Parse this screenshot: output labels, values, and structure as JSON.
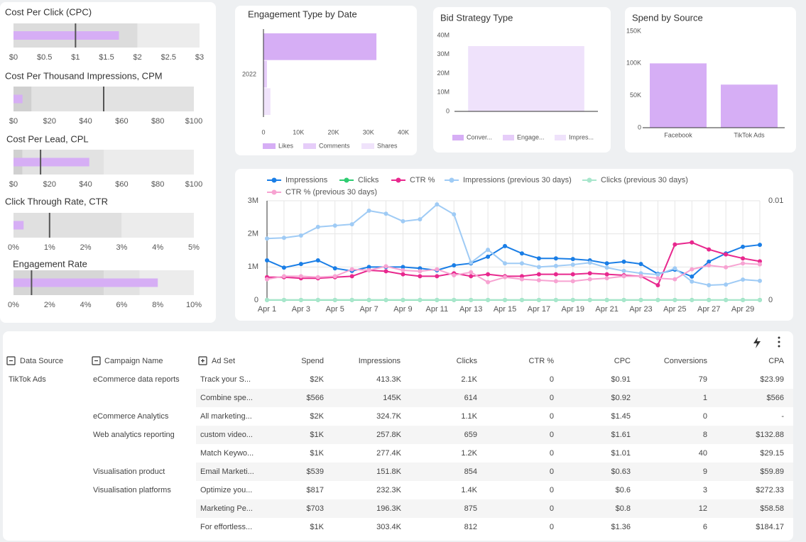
{
  "chart_data": [
    {
      "type": "bullet",
      "title": "Cost Per Click (CPC)",
      "value": 1.7,
      "target": 1,
      "ranges": [
        2,
        3
      ],
      "range_colors": [
        "#dcdcdc",
        "#ececec"
      ],
      "color": "#d6aef5",
      "target_color": "#555555",
      "xlim": [
        0,
        3
      ],
      "xticks": [
        {
          "value": 0,
          "label": "$0"
        },
        {
          "value": 0.5,
          "label": "$0.5"
        },
        {
          "value": 1,
          "label": "$1"
        },
        {
          "value": 1.5,
          "label": "$1.5"
        },
        {
          "value": 2,
          "label": "$2"
        },
        {
          "value": 2.5,
          "label": "$2.5"
        },
        {
          "value": 3,
          "label": "$3"
        }
      ]
    },
    {
      "type": "bullet",
      "title": "Cost Per Thousand Impressions, CPM",
      "value": 5,
      "target": 50,
      "ranges": [
        10,
        100
      ],
      "range_colors": [
        "#d0d0d0",
        "#e2e2e2"
      ],
      "color": "#d6aef5",
      "target_color": "#555555",
      "xlim": [
        0,
        100
      ],
      "xticks": [
        {
          "value": 0,
          "label": "$0"
        },
        {
          "value": 20,
          "label": "$20"
        },
        {
          "value": 40,
          "label": "$40"
        },
        {
          "value": 60,
          "label": "$60"
        },
        {
          "value": 80,
          "label": "$80"
        },
        {
          "value": 100,
          "label": "$100"
        }
      ]
    },
    {
      "type": "bullet",
      "title": "Cost Per Lead, CPL",
      "value": 42,
      "target": 15,
      "ranges": [
        5,
        50,
        100
      ],
      "range_colors": [
        "#d0d0d0",
        "#e2e2e2",
        "#ececec"
      ],
      "color": "#d6aef5",
      "target_color": "#555555",
      "xlim": [
        0,
        100
      ],
      "xticks": [
        {
          "value": 0,
          "label": "$0"
        },
        {
          "value": 20,
          "label": "$20"
        },
        {
          "value": 40,
          "label": "$40"
        },
        {
          "value": 60,
          "label": "$60"
        },
        {
          "value": 80,
          "label": "$80"
        },
        {
          "value": 100,
          "label": "$100"
        }
      ]
    },
    {
      "type": "bullet",
      "title": "Click Through Rate, CTR",
      "value": 0.28,
      "target": 1,
      "ranges": [
        3,
        5
      ],
      "range_colors": [
        "#e0e0e0",
        "#ececec"
      ],
      "color": "#d6aef5",
      "target_color": "#555555",
      "xlim": [
        0,
        5
      ],
      "xticks": [
        {
          "value": 0,
          "label": "0%"
        },
        {
          "value": 1,
          "label": "1%"
        },
        {
          "value": 2,
          "label": "2%"
        },
        {
          "value": 3,
          "label": "3%"
        },
        {
          "value": 4,
          "label": "4%"
        },
        {
          "value": 5,
          "label": "5%"
        }
      ]
    },
    {
      "type": "bullet",
      "title": "Engagement Rate",
      "value": 8,
      "target": 1,
      "ranges": [
        5,
        7,
        10
      ],
      "range_colors": [
        "#d6d6d6",
        "#e2e2e2",
        "#ececec"
      ],
      "color": "#d6aef5",
      "target_color": "#555555",
      "xlim": [
        0,
        10
      ],
      "xticks": [
        {
          "value": 0,
          "label": "0%"
        },
        {
          "value": 2,
          "label": "2%"
        },
        {
          "value": 4,
          "label": "4%"
        },
        {
          "value": 6,
          "label": "6%"
        },
        {
          "value": 8,
          "label": "8%"
        },
        {
          "value": 10,
          "label": "10%"
        }
      ]
    },
    {
      "type": "hbar",
      "title": "Engagement Type by Date",
      "categories": [
        "2022"
      ],
      "series": [
        {
          "name": "Likes",
          "color": "#d6aef5",
          "values": [
            32300
          ]
        },
        {
          "name": "Comments",
          "color": "#e6cdf9",
          "values": [
            1000
          ]
        },
        {
          "name": "Shares",
          "color": "#f0e3fb",
          "values": [
            2000
          ]
        }
      ],
      "xlim": [
        0,
        40000
      ],
      "xticks": [
        0,
        {
          "value": 10000,
          "label": "10K"
        },
        {
          "value": 20000,
          "label": "20K"
        },
        {
          "value": 30000,
          "label": "30K"
        },
        {
          "value": 40000,
          "label": "40K"
        }
      ],
      "legend": "bottom"
    },
    {
      "type": "bar",
      "title": "Bid Strategy Type",
      "categories": [
        null
      ],
      "stacked": true,
      "series": [
        {
          "name": "Conver...",
          "color": "#d6aef5",
          "values": [
            0
          ]
        },
        {
          "name": "Engage...",
          "color": "#e6cdf9",
          "values": [
            0
          ]
        },
        {
          "name": "Impres...",
          "color": "#efe2fb",
          "values": [
            34400000
          ]
        }
      ],
      "ylim": [
        0,
        40000000
      ],
      "yticks": [
        0,
        {
          "value": 10000000,
          "label": "10M"
        },
        {
          "value": 20000000,
          "label": "20M"
        },
        {
          "value": 30000000,
          "label": "30M"
        },
        {
          "value": 40000000,
          "label": "40M"
        }
      ],
      "legend": "bottom"
    },
    {
      "type": "bar",
      "title": "Spend by Source",
      "categories": [
        "Facebook",
        "TikTok Ads"
      ],
      "values": [
        100000,
        67000
      ],
      "color": "#d6aef5",
      "ylim": [
        0,
        150000
      ],
      "yticks": [
        0,
        {
          "value": 50000,
          "label": "50K"
        },
        {
          "value": 100000,
          "label": "100K"
        },
        {
          "value": 150000,
          "label": "150K"
        }
      ]
    },
    {
      "type": "line",
      "grid": true,
      "legend": "top",
      "categories": [
        "Apr 1",
        null,
        "Apr 3",
        null,
        "Apr 5",
        null,
        "Apr 7",
        null,
        "Apr 9",
        null,
        "Apr 11",
        null,
        "Apr 13",
        null,
        "Apr 15",
        null,
        "Apr 17",
        null,
        "Apr 19",
        null,
        "Apr 21",
        null,
        "Apr 23",
        null,
        "Apr 25",
        null,
        "Apr 27",
        null,
        "Apr 29",
        null
      ],
      "series": [
        {
          "name": "Impressions",
          "color": "#1a7ee6",
          "values": [
            1200000,
            980000,
            1090000,
            1200000,
            960000,
            880000,
            1000000,
            1000000,
            1000000,
            960000,
            900000,
            1050000,
            1110000,
            1310000,
            1630000,
            1410000,
            1260000,
            1260000,
            1240000,
            1200000,
            1110000,
            1160000,
            1090000,
            790000,
            920000,
            710000,
            1160000,
            1410000,
            1610000,
            1670000
          ]
        },
        {
          "name": "Clicks",
          "color": "#2ecc71",
          "values": [
            2100,
            1900,
            2000,
            2100,
            1800,
            1700,
            1900,
            1900,
            1900,
            1800,
            1700,
            2000,
            2100,
            2400,
            2900,
            2600,
            2300,
            2300,
            2300,
            2200,
            2100,
            2100,
            2000,
            1500,
            1700,
            1400,
            2100,
            2600,
            2900,
            3000
          ]
        },
        {
          "name": "CTR %",
          "color": "#e8288e",
          "axis": "y2",
          "values": [
            0.0023,
            0.0023,
            0.0022,
            0.0022,
            0.0023,
            0.0024,
            0.003,
            0.0029,
            0.0026,
            0.0024,
            0.0024,
            0.0027,
            0.0024,
            0.0026,
            0.0024,
            0.0024,
            0.0026,
            0.0026,
            0.0026,
            0.0027,
            0.0026,
            0.0025,
            0.0024,
            0.0015,
            0.0056,
            0.0058,
            0.0051,
            0.0046,
            0.0042,
            0.0039
          ]
        },
        {
          "name": "Impressions (previous 30 days)",
          "color": "#9fcbf5",
          "values": [
            1860000,
            1880000,
            1950000,
            2210000,
            2250000,
            2290000,
            2700000,
            2610000,
            2380000,
            2440000,
            2890000,
            2590000,
            1130000,
            1520000,
            1110000,
            1110000,
            1000000,
            1030000,
            1070000,
            1130000,
            980000,
            880000,
            810000,
            770000,
            960000,
            560000,
            450000,
            470000,
            620000,
            580000
          ]
        },
        {
          "name": "Clicks (previous 30 days)",
          "color": "#a8e6cc",
          "values": [
            3500,
            3500,
            3700,
            4200,
            4300,
            4400,
            5200,
            5000,
            4500,
            4600,
            5500,
            4900,
            2100,
            2900,
            2100,
            2100,
            1900,
            2000,
            2000,
            2100,
            1900,
            1700,
            1500,
            1500,
            1800,
            1100,
            900,
            900,
            1200,
            1100
          ]
        },
        {
          "name": "CTR % (previous 30 days)",
          "color": "#f7a3d2",
          "axis": "y2",
          "values": [
            0.0021,
            0.0024,
            0.0024,
            0.0023,
            0.0024,
            0.0031,
            0.003,
            0.0034,
            0.003,
            0.0029,
            0.0031,
            0.0025,
            0.0028,
            0.0018,
            0.0023,
            0.0021,
            0.002,
            0.0019,
            0.0019,
            0.0021,
            0.0022,
            0.0024,
            0.0024,
            0.0022,
            0.0021,
            0.0031,
            0.0035,
            0.0033,
            0.0037,
            0.0036
          ]
        }
      ],
      "ylim": [
        0,
        3000000
      ],
      "yticks": [
        0,
        {
          "value": 1000000,
          "label": "1M"
        },
        {
          "value": 2000000,
          "label": "2M"
        },
        {
          "value": 3000000,
          "label": "3M"
        }
      ],
      "y2lim": [
        0,
        0.01
      ],
      "y2ticks": [
        0,
        0.01
      ]
    }
  ],
  "table": {
    "columns": [
      "Data Source",
      "Campaign Name",
      "Ad Set",
      "Spend",
      "Impressions",
      "Clicks",
      "CTR %",
      "CPC",
      "Conversions",
      "CPA"
    ],
    "rows": [
      [
        "TikTok Ads",
        "eCommerce data reports",
        "Track your S...",
        "$2K",
        "413.3K",
        "2.1K",
        "0",
        "$0.91",
        "79",
        "$23.99"
      ],
      [
        null,
        null,
        "Combine spe...",
        "$566",
        "145K",
        "614",
        "0",
        "$0.92",
        "1",
        "$566"
      ],
      [
        null,
        "eCommerce Analytics",
        "All marketing...",
        "$2K",
        "324.7K",
        "1.1K",
        "0",
        "$1.45",
        "0",
        "-"
      ],
      [
        null,
        "Web analytics reporting",
        "custom video...",
        "$1K",
        "257.8K",
        "659",
        "0",
        "$1.61",
        "8",
        "$132.88"
      ],
      [
        null,
        null,
        "Match Keywo...",
        "$1K",
        "277.4K",
        "1.2K",
        "0",
        "$1.01",
        "40",
        "$29.15"
      ],
      [
        null,
        "Visualisation product",
        "Email Marketi...",
        "$539",
        "151.8K",
        "854",
        "0",
        "$0.63",
        "9",
        "$59.89"
      ],
      [
        null,
        "Visualisation platforms",
        "Optimize you...",
        "$817",
        "232.3K",
        "1.4K",
        "0",
        "$0.6",
        "3",
        "$272.33"
      ],
      [
        null,
        null,
        "Marketing Pe...",
        "$703",
        "196.3K",
        "875",
        "0",
        "$0.8",
        "12",
        "$58.58"
      ],
      [
        null,
        null,
        "For effortless...",
        "$1K",
        "303.4K",
        "812",
        "0",
        "$1.36",
        "6",
        "$184.17"
      ]
    ]
  }
}
